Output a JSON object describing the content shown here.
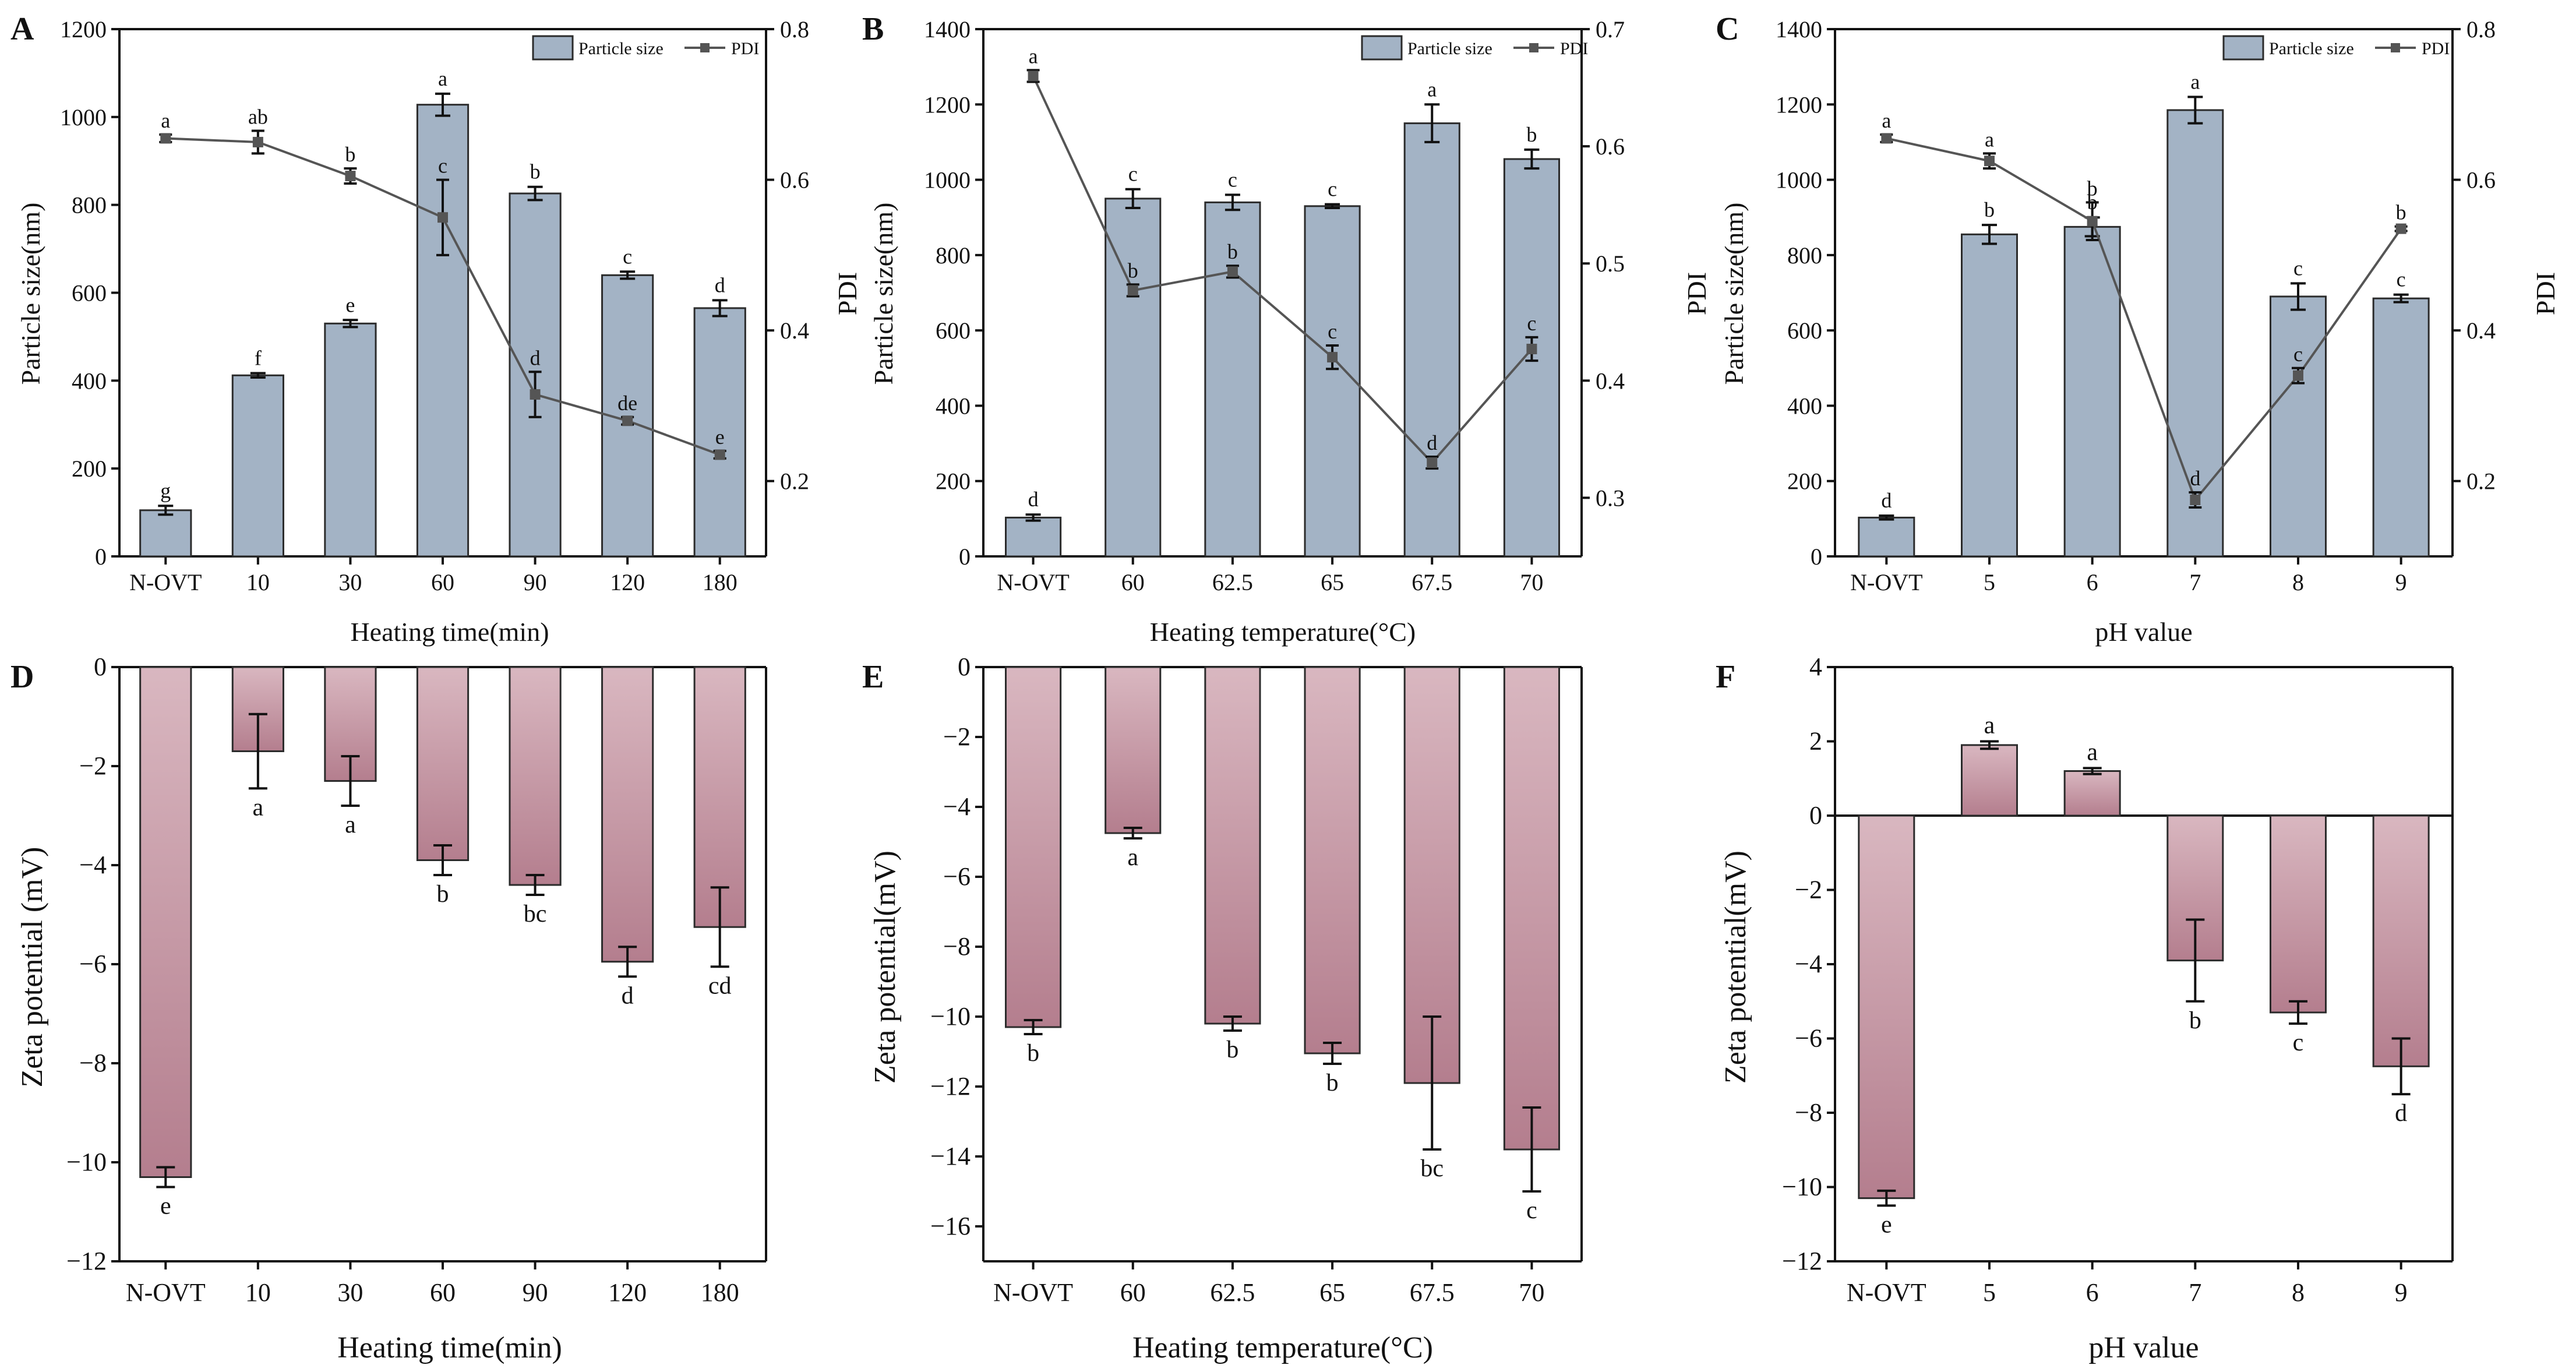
{
  "figure": {
    "colors": {
      "blue_bar": "#A3B3C5",
      "blue_bar_edge": "#2b2b2b",
      "pink_top": "#D9B7C0",
      "pink_bottom": "#B47E8E",
      "pdi_line": "#555555",
      "axis": "#111111"
    },
    "legend": {
      "bar_label": "Particle size",
      "line_label": "PDI"
    }
  },
  "chart_data": [
    {
      "panel": "A",
      "type": "bar+line",
      "categories": [
        "N-OVT",
        "10",
        "30",
        "60",
        "90",
        "120",
        "180"
      ],
      "series": [
        {
          "name": "Particle size",
          "axis": "left",
          "values": [
            105,
            412,
            530,
            1028,
            826,
            640,
            565
          ],
          "errors": [
            10,
            5,
            8,
            25,
            15,
            8,
            18
          ],
          "letters": [
            "g",
            "f",
            "e",
            "a",
            "b",
            "c",
            "d"
          ]
        },
        {
          "name": "PDI",
          "axis": "right",
          "values": [
            0.655,
            0.65,
            0.605,
            0.55,
            0.315,
            0.28,
            0.235
          ],
          "errors": [
            0.005,
            0.015,
            0.01,
            0.05,
            0.03,
            0.005,
            0.005
          ],
          "letters": [
            "a",
            "ab",
            "b",
            "c",
            "d",
            "de",
            "e"
          ]
        }
      ],
      "xlabel": "Heating time(min)",
      "ylabel": "Particle size(nm)",
      "y2label": "PDI",
      "ylim": [
        0,
        1200
      ],
      "yticks": [
        0,
        200,
        400,
        600,
        800,
        1000,
        1200
      ],
      "y2lim": [
        0.1,
        0.8
      ],
      "y2ticks": [
        0.2,
        0.4,
        0.6,
        0.8
      ],
      "legend": "top-right"
    },
    {
      "panel": "B",
      "type": "bar+line",
      "categories": [
        "N-OVT",
        "60",
        "62.5",
        "65",
        "67.5",
        "70"
      ],
      "series": [
        {
          "name": "Particle size",
          "axis": "left",
          "values": [
            103,
            950,
            940,
            930,
            1150,
            1055
          ],
          "errors": [
            8,
            25,
            20,
            5,
            50,
            25
          ],
          "letters": [
            "d",
            "c",
            "c",
            "c",
            "a",
            "b"
          ]
        },
        {
          "name": "PDI",
          "axis": "right",
          "values": [
            0.66,
            0.477,
            0.493,
            0.42,
            0.33,
            0.427
          ],
          "errors": [
            0.005,
            0.005,
            0.005,
            0.01,
            0.005,
            0.01
          ],
          "letters": [
            "a",
            "b",
            "b",
            "c",
            "d",
            "c"
          ]
        }
      ],
      "xlabel": "Heating temperature(°C)",
      "ylabel": "Particle size(nm)",
      "y2label": "PDI",
      "ylim": [
        0,
        1400
      ],
      "yticks": [
        0,
        200,
        400,
        600,
        800,
        1000,
        1200,
        1400
      ],
      "y2lim": [
        0.25,
        0.7
      ],
      "y2ticks": [
        0.3,
        0.4,
        0.5,
        0.6,
        0.7
      ],
      "legend": "top-right"
    },
    {
      "panel": "C",
      "type": "bar+line",
      "categories": [
        "N-OVT",
        "5",
        "6",
        "7",
        "8",
        "9"
      ],
      "series": [
        {
          "name": "Particle size",
          "axis": "left",
          "values": [
            103,
            855,
            875,
            1185,
            690,
            685
          ],
          "errors": [
            5,
            25,
            25,
            35,
            35,
            10
          ],
          "letters": [
            "d",
            "b",
            "b",
            "a",
            "c",
            "c"
          ]
        },
        {
          "name": "PDI",
          "axis": "right",
          "values": [
            0.655,
            0.625,
            0.545,
            0.175,
            0.34,
            0.535
          ],
          "errors": [
            0.005,
            0.01,
            0.025,
            0.01,
            0.01,
            0.003
          ],
          "letters": [
            "a",
            "a",
            "b",
            "d",
            "c",
            "b"
          ]
        }
      ],
      "xlabel": "pH value",
      "ylabel": "Particle size(nm)",
      "y2label": "PDI",
      "ylim": [
        0,
        1400
      ],
      "yticks": [
        0,
        200,
        400,
        600,
        800,
        1000,
        1200,
        1400
      ],
      "y2lim": [
        0.1,
        0.8
      ],
      "y2ticks": [
        0.2,
        0.4,
        0.6,
        0.8
      ],
      "legend": "top-right"
    },
    {
      "panel": "D",
      "type": "bar",
      "categories": [
        "N-OVT",
        "10",
        "30",
        "60",
        "90",
        "120",
        "180"
      ],
      "values": [
        -10.3,
        -1.7,
        -2.3,
        -3.9,
        -4.4,
        -5.95,
        -5.25
      ],
      "errors": [
        0.2,
        0.75,
        0.5,
        0.3,
        0.2,
        0.3,
        0.8
      ],
      "letters": [
        "e",
        "a",
        "a",
        "b",
        "bc",
        "d",
        "cd"
      ],
      "xlabel": "Heating time(min)",
      "ylabel": "Zeta potential (mV)",
      "ylim": [
        -12,
        0
      ],
      "yticks": [
        -12,
        -10,
        -8,
        -6,
        -4,
        -2,
        0
      ]
    },
    {
      "panel": "E",
      "type": "bar",
      "categories": [
        "N-OVT",
        "60",
        "62.5",
        "65",
        "67.5",
        "70"
      ],
      "values": [
        -10.3,
        -4.75,
        -10.2,
        -11.05,
        -11.9,
        -13.8
      ],
      "errors": [
        0.2,
        0.15,
        0.2,
        0.3,
        1.9,
        1.2
      ],
      "letters": [
        "b",
        "a",
        "b",
        "b",
        "bc",
        "c"
      ],
      "xlabel": "Heating temperature(°C)",
      "ylabel": "Zeta potential(mV)",
      "ylim": [
        -17,
        0
      ],
      "yticks": [
        -16,
        -14,
        -12,
        -10,
        -8,
        -6,
        -4,
        -2,
        0
      ]
    },
    {
      "panel": "F",
      "type": "bar",
      "categories": [
        "N-OVT",
        "5",
        "6",
        "7",
        "8",
        "9"
      ],
      "values": [
        -10.3,
        1.9,
        1.2,
        -3.9,
        -5.3,
        -6.75
      ],
      "errors": [
        0.2,
        0.1,
        0.08,
        1.1,
        0.3,
        0.75
      ],
      "letters": [
        "e",
        "a",
        "a",
        "b",
        "c",
        "d"
      ],
      "xlabel": "pH value",
      "ylabel": "Zeta potential(mV)",
      "ylim": [
        -12,
        4
      ],
      "yticks": [
        -12,
        -10,
        -8,
        -6,
        -4,
        -2,
        0,
        2,
        4
      ]
    }
  ]
}
